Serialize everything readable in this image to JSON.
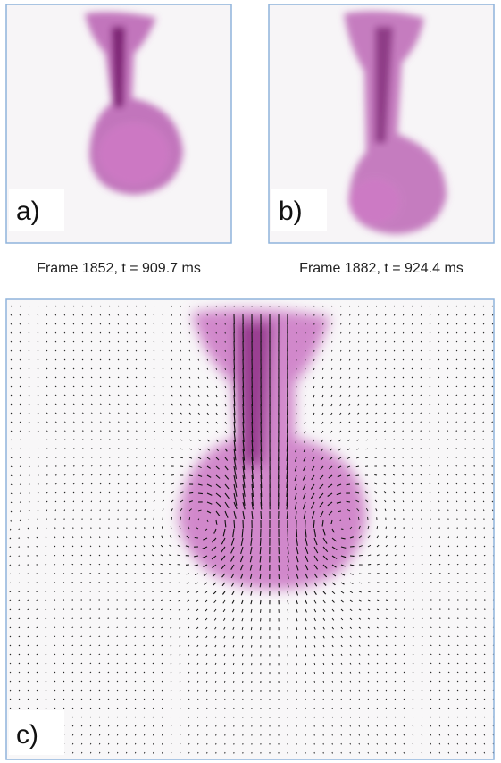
{
  "panels": [
    {
      "label": "a)",
      "caption": "Frame 1852, t = 909.7 ms"
    },
    {
      "label": "b)",
      "caption": "Frame 1882, t = 924.4 ms"
    },
    {
      "label": "c)"
    }
  ]
}
